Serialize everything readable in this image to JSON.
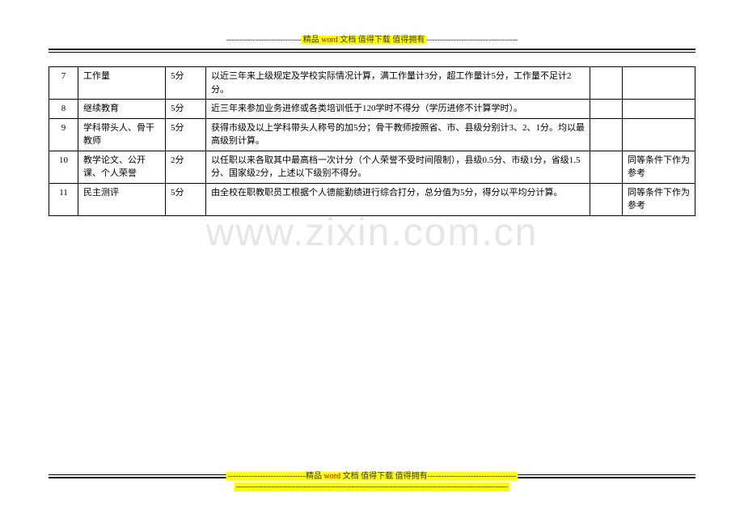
{
  "banner": {
    "dashes_left": "----------------------------",
    "text_a": "精品 ",
    "text_b": "word ",
    "text_c": "文档  值得下载  值得拥有",
    "dashes_right": "----------------------------------"
  },
  "footer_banner": {
    "dashes_left": "-----------------------------",
    "text_a": "精品 ",
    "text_b": "word ",
    "text_c": "文档  值得下载  值得拥有",
    "dashes_right": "---------------------------------",
    "second_line_dashes": "-----------------------------------------------------------------------------------------------------"
  },
  "watermark": "www.zixin.com.cn",
  "table": {
    "col_widths": [
      "36px",
      "108px",
      "50px",
      "",
      "40px",
      "90px"
    ],
    "rows": [
      {
        "idx": "7",
        "name": "工作量",
        "score": "5分",
        "desc": "以近三年来上级规定及学校实际情况计算，满工作量计3分，超工作量计5分，工作量不足计2分。",
        "col5": "",
        "note": ""
      },
      {
        "idx": "8",
        "name": "继续教育",
        "score": "5分",
        "desc": "近三年来参加业务进修或各类培训低于120学时不得分（学历进修不计算学时）。",
        "col5": "",
        "note": ""
      },
      {
        "idx": "9",
        "name": "学科带头人、骨干教师",
        "score": "5分",
        "desc": "获得市级及以上学科带头人称号的加5分；骨干教师按照省、市、县级分别计3、2、1分。均以最高级别计算。",
        "col5": "",
        "note": ""
      },
      {
        "idx": "10",
        "name": "教学论文、公开课、个人荣誉",
        "score": "2分",
        "desc": "以任职以来各取其中最高档一次计分（个人荣誉不受时间限制），县级0.5分、市级1分，省级1.5分、国家级2分，上述以下级别不得分。",
        "col5": "",
        "note": "同等条件下作为参考"
      },
      {
        "idx": "11",
        "name": "民主测评",
        "score": "5分",
        "desc": "由全校在职教职员工根据个人德能勤绩进行综合打分，总分值为5分，得分以平均分计算。",
        "col5": "",
        "note": "同等条件下作为参考"
      }
    ]
  }
}
